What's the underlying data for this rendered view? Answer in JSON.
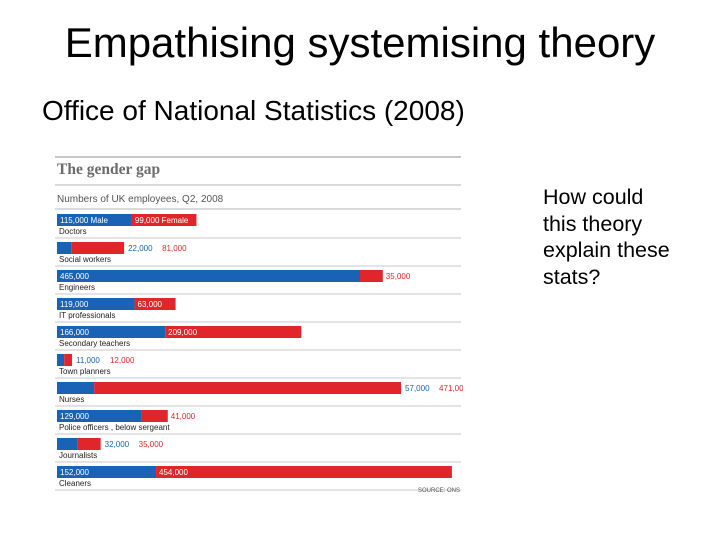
{
  "slide": {
    "title": "Empathising systemising theory",
    "subtitle": "Office of National Statistics (2008)",
    "question": "How could\nthis theory\nexplain these\nstats?"
  },
  "colors": {
    "male": "#1a62b5",
    "female": "#e0262b",
    "rule": "#b5b5b5",
    "category_text": "#222222",
    "label_text": "#ffffff"
  },
  "chart_data": {
    "type": "bar",
    "orientation": "horizontal",
    "stacked": true,
    "title": "The gender gap",
    "subtitle": "Numbers of UK employees, Q2, 2008",
    "source": "SOURCE: ONS",
    "categories": [
      "Doctors",
      "Social workers",
      "Engineers",
      "IT professionals",
      "Secondary  teachers",
      "Town planners",
      "Nurses",
      "Police officers , below sergeant",
      "Journalists",
      "Cleaners"
    ],
    "series": [
      {
        "name": "Male",
        "values": [
          115000,
          22000,
          465000,
          119000,
          166000,
          11000,
          57000,
          129000,
          32000,
          152000
        ],
        "labels": [
          "115,000 Male",
          "22,000",
          "465,000",
          "119,000",
          "166,000",
          "11,000",
          "57,000",
          "129,000",
          "32,000",
          "152,000"
        ]
      },
      {
        "name": "Female",
        "values": [
          99000,
          81000,
          35000,
          63000,
          209000,
          12000,
          471000,
          41000,
          35000,
          454000
        ],
        "labels": [
          "99,000 Female",
          "81,000",
          "35,000",
          "63,000",
          "209,000",
          "12,000",
          "471,000",
          "41,000",
          "35,000",
          "454,000"
        ]
      }
    ],
    "xlim": [
      0,
      620000
    ],
    "grid": false
  }
}
